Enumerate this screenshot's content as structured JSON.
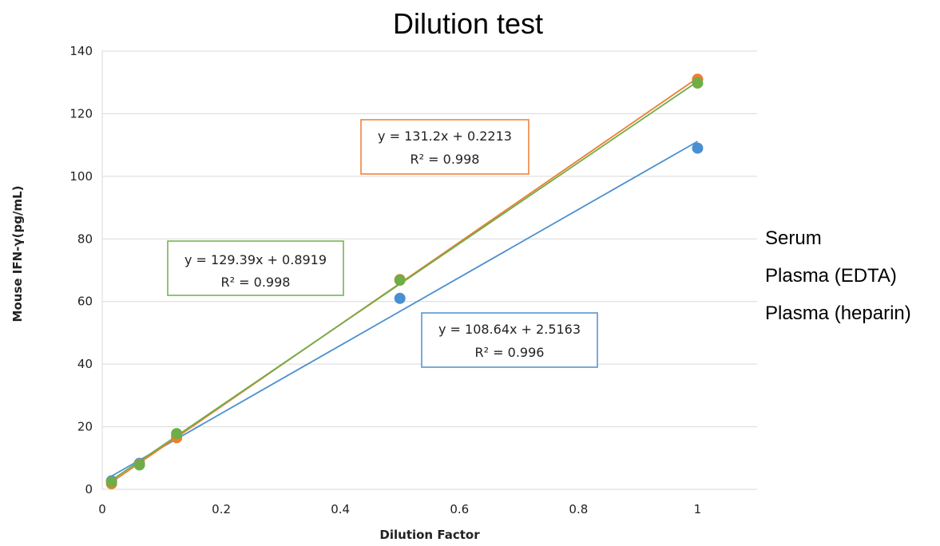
{
  "chart_data": {
    "type": "scatter",
    "title": "Dilution test",
    "xlabel": "Dilution Factor",
    "ylabel": "Mouse IFN-γ(pg/mL)",
    "xlim": [
      0,
      1.1
    ],
    "ylim": [
      0,
      140
    ],
    "xticks": [
      0,
      0.2,
      0.4,
      0.6,
      0.8,
      1
    ],
    "xtick_labels": [
      "0",
      "0.2",
      "0.4",
      "0.6",
      "0.8",
      "1"
    ],
    "yticks": [
      0,
      20,
      40,
      60,
      80,
      100,
      120,
      140
    ],
    "ytick_labels": [
      "0",
      "20",
      "40",
      "60",
      "80",
      "100",
      "120",
      "140"
    ],
    "grid": true,
    "legend_position": "right",
    "legend": [
      "Serum",
      "Plasma (EDTA)",
      "Plasma (heparin)"
    ],
    "series": [
      {
        "color": "#4a90d0",
        "x": [
          0.0156,
          0.0625,
          0.125,
          0.5,
          1
        ],
        "y": [
          2.7,
          8.3,
          17.0,
          61.0,
          109.0
        ],
        "trendline": {
          "slope": 108.64,
          "intercept": 2.5163
        },
        "equation": "y = 108.64x + 2.5163",
        "r2": "R² = 0.996"
      },
      {
        "color": "#ed7d31",
        "x": [
          0.0156,
          0.0625,
          0.125,
          0.5,
          1
        ],
        "y": [
          1.8,
          8.0,
          16.5,
          67.0,
          131.0
        ],
        "trendline": {
          "slope": 131.2,
          "intercept": 0.2213
        },
        "equation": "y = 131.2x + 0.2213",
        "r2": "R² = 0.998"
      },
      {
        "color": "#70ad47",
        "x": [
          0.0156,
          0.0625,
          0.125,
          0.5,
          1
        ],
        "y": [
          2.4,
          7.8,
          17.8,
          66.8,
          129.8
        ],
        "trendline": {
          "slope": 129.39,
          "intercept": 0.8919
        },
        "equation": "y = 129.39x + 0.8919",
        "r2": "R² = 0.998"
      }
    ]
  }
}
